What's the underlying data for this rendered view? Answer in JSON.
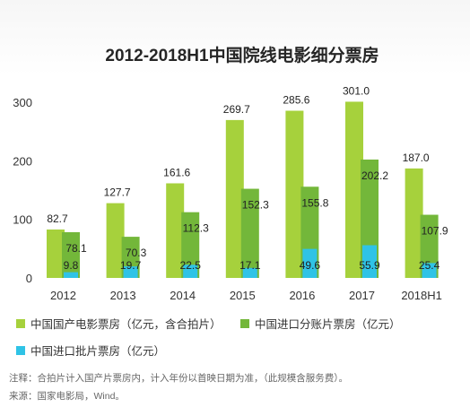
{
  "chart_data": {
    "type": "bar",
    "title": "2012-2018H1中国院线电影细分票房",
    "categories": [
      "2012",
      "2013",
      "2014",
      "2015",
      "2016",
      "2017",
      "2018H1"
    ],
    "series": [
      {
        "name": "中国国产电影票房（亿元，含合拍片）",
        "color": "#a6d13c",
        "values": [
          82.7,
          127.7,
          161.6,
          269.7,
          285.6,
          301.0,
          187.0
        ]
      },
      {
        "name": "中国进口分账片票房（亿元）",
        "color": "#73b73a",
        "values": [
          78.1,
          70.3,
          112.3,
          152.3,
          155.8,
          202.2,
          107.9
        ]
      },
      {
        "name": "中国进口批片票房（亿元）",
        "color": "#2fc3e6",
        "values": [
          9.8,
          19.7,
          22.5,
          17.1,
          49.6,
          55.9,
          25.4
        ]
      }
    ],
    "data_labels": [
      [
        "82.7",
        "127.7",
        "161.6",
        "269.7",
        "285.6",
        "301.0",
        "187.0"
      ],
      [
        "78.1",
        "70.3",
        "112.3",
        "152.3",
        "155.8",
        "202.2",
        "107.9"
      ],
      [
        "9.8",
        "19.7",
        "22.5",
        "17.1",
        "49.6",
        "55.9",
        "25.4"
      ]
    ],
    "y_ticks": [
      "0",
      "100",
      "200",
      "300"
    ],
    "ylim": [
      0,
      320
    ],
    "grid": false,
    "legend_position": "bottom"
  },
  "notes": {
    "note": "注释：合拍片计入国产片票房内，计入年份以首映日期为准，（此规模含服务费）。",
    "source": "来源：国家电影局，Wind。"
  }
}
